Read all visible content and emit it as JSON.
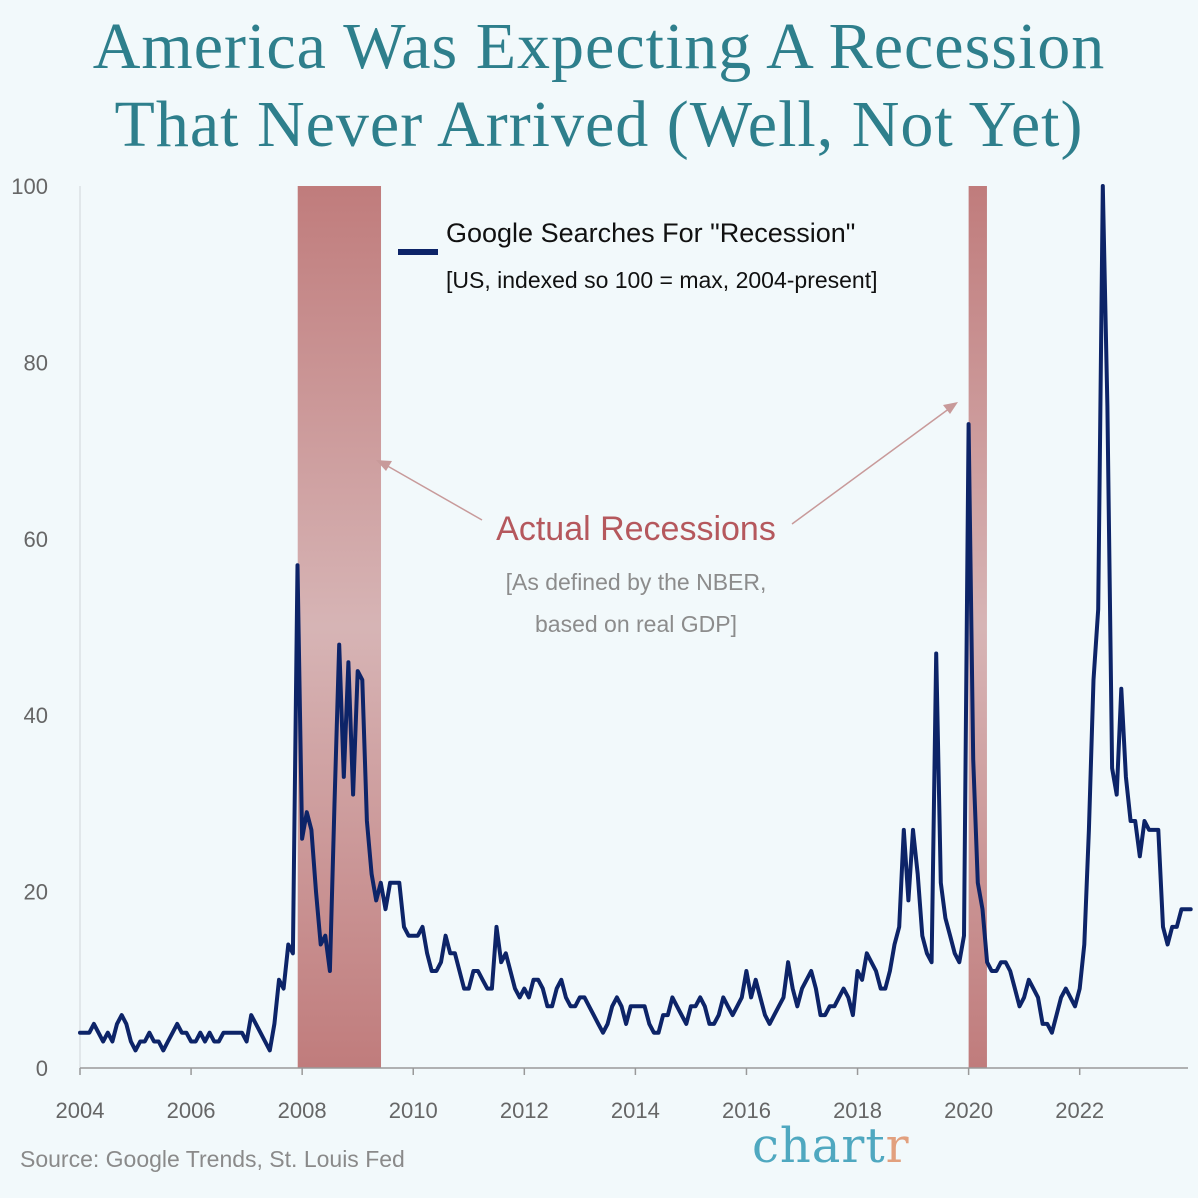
{
  "title": {
    "line1": "America Was Expecting A Recession",
    "line2": "That Never Arrived (Well, Not Yet)"
  },
  "legend": {
    "label": "Google Searches For \"Recession\"",
    "sublabel": "[US, indexed so 100 = max, 2004-present]"
  },
  "annotation": {
    "title": "Actual Recessions",
    "line1": "[As defined by the NBER,",
    "line2": "based on real GDP]"
  },
  "source": "Source: Google Trends, St. Louis Fed",
  "brand": {
    "main": "chart",
    "accent_letter": "r"
  },
  "colors": {
    "title": "#2e7f8c",
    "line": "#0d2468",
    "recession": "#c07c7c",
    "annotation": "#b5585d",
    "axis_text": "#666666",
    "brand": "#4fa8c0",
    "brand_accent": "#e2a07e"
  },
  "chart_data": {
    "type": "line",
    "title": "America Was Expecting A Recession That Never Arrived (Well, Not Yet)",
    "xlabel": "",
    "ylabel": "",
    "xlim": [
      2004.0,
      2023.95
    ],
    "ylim": [
      0,
      100
    ],
    "x_ticks": [
      2004,
      2006,
      2008,
      2010,
      2012,
      2014,
      2016,
      2018,
      2020,
      2022
    ],
    "y_ticks": [
      0,
      20,
      40,
      60,
      80,
      100
    ],
    "recessions": [
      {
        "start": 2007.92,
        "end": 2009.42
      },
      {
        "start": 2020.0,
        "end": 2020.33
      }
    ],
    "series": [
      {
        "name": "Google Searches For \"Recession\"",
        "x_start": 2004.0,
        "x_step": 0.08333,
        "values": [
          4,
          4,
          4,
          5,
          4,
          3,
          4,
          3,
          5,
          6,
          5,
          3,
          2,
          3,
          3,
          4,
          3,
          3,
          2,
          3,
          4,
          5,
          4,
          4,
          3,
          3,
          4,
          3,
          4,
          3,
          3,
          4,
          4,
          4,
          4,
          4,
          3,
          6,
          5,
          4,
          3,
          2,
          5,
          10,
          9,
          14,
          13,
          57,
          26,
          29,
          27,
          20,
          14,
          15,
          11,
          30,
          48,
          33,
          46,
          31,
          45,
          44,
          28,
          22,
          19,
          21,
          18,
          21,
          21,
          21,
          16,
          15,
          15,
          15,
          16,
          13,
          11,
          11,
          12,
          15,
          13,
          13,
          11,
          9,
          9,
          11,
          11,
          10,
          9,
          9,
          16,
          12,
          13,
          11,
          9,
          8,
          9,
          8,
          10,
          10,
          9,
          7,
          7,
          9,
          10,
          8,
          7,
          7,
          8,
          8,
          7,
          6,
          5,
          4,
          5,
          7,
          8,
          7,
          5,
          7,
          7,
          7,
          7,
          5,
          4,
          4,
          6,
          6,
          8,
          7,
          6,
          5,
          7,
          7,
          8,
          7,
          5,
          5,
          6,
          8,
          7,
          6,
          7,
          8,
          11,
          8,
          10,
          8,
          6,
          5,
          6,
          7,
          8,
          12,
          9,
          7,
          9,
          10,
          11,
          9,
          6,
          6,
          7,
          7,
          8,
          9,
          8,
          6,
          11,
          10,
          13,
          12,
          11,
          9,
          9,
          11,
          14,
          16,
          27,
          19,
          27,
          22,
          15,
          13,
          12,
          47,
          21,
          17,
          15,
          13,
          12,
          15,
          73,
          35,
          21,
          18,
          12,
          11,
          11,
          12,
          12,
          11,
          9,
          7,
          8,
          10,
          9,
          8,
          5,
          5,
          4,
          6,
          8,
          9,
          8,
          7,
          9,
          14,
          27,
          44,
          52,
          100,
          75,
          34,
          31,
          43,
          33,
          28,
          28,
          24,
          28,
          27,
          27,
          27,
          16,
          14,
          16,
          16,
          18,
          18,
          18
        ]
      }
    ]
  }
}
